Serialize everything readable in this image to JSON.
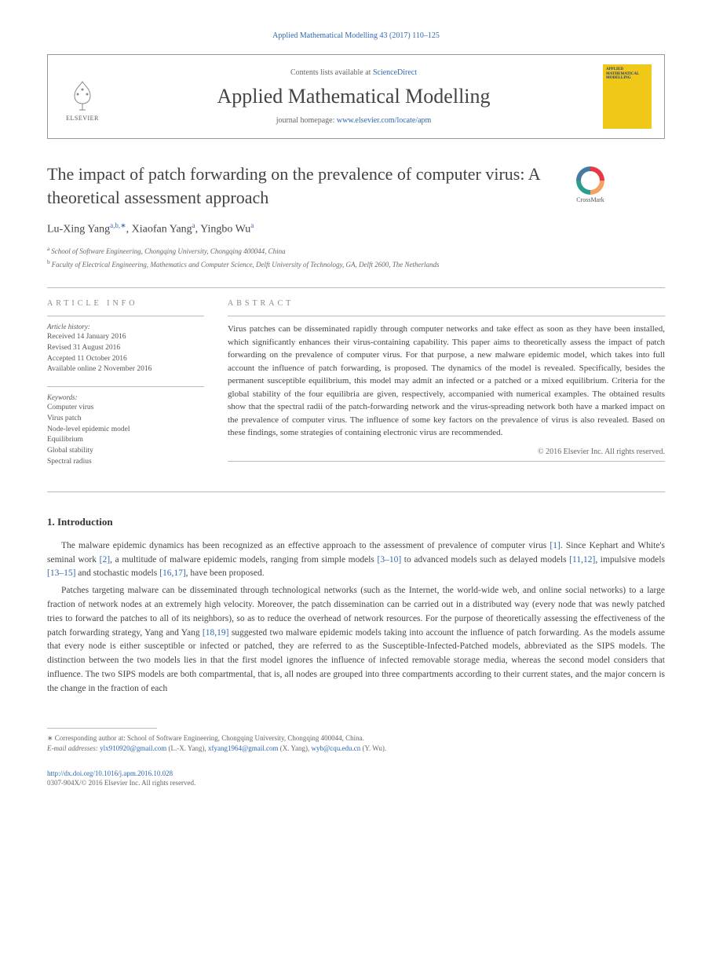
{
  "header": {
    "citation": "Applied Mathematical Modelling 43 (2017) 110–125",
    "contents_prefix": "Contents lists available at ",
    "contents_link": "ScienceDirect",
    "journal_name": "Applied Mathematical Modelling",
    "homepage_prefix": "journal homepage: ",
    "homepage_link": "www.elsevier.com/locate/apm",
    "elsevier_label": "ELSEVIER",
    "cover": {
      "bg_color": "#f0c818",
      "title": "APPLIED MATHEMATICAL MODELLING"
    }
  },
  "crossmark_label": "CrossMark",
  "title": "The impact of patch forwarding on the prevalence of computer virus: A theoretical assessment approach",
  "authors": [
    {
      "name": "Lu-Xing Yang",
      "affil": "a,b,",
      "corr": true
    },
    {
      "name": "Xiaofan Yang",
      "affil": "a",
      "corr": false
    },
    {
      "name": "Yingbo Wu",
      "affil": "a",
      "corr": false
    }
  ],
  "affiliations": [
    {
      "key": "a",
      "text": "School of Software Engineering, Chongqing University, Chongqing 400044, China"
    },
    {
      "key": "b",
      "text": "Faculty of Electrical Engineering, Mathematics and Computer Science, Delft University of Technology, GA, Delft 2600, The Netherlands"
    }
  ],
  "info_label": "ARTICLE INFO",
  "abstract_label": "ABSTRACT",
  "history": {
    "label": "Article history:",
    "items": [
      "Received 14 January 2016",
      "Revised 31 August 2016",
      "Accepted 11 October 2016",
      "Available online 2 November 2016"
    ]
  },
  "keywords": {
    "label": "Keywords:",
    "items": [
      "Computer virus",
      "Virus patch",
      "Node-level epidemic model",
      "Equilibrium",
      "Global stability",
      "Spectral radius"
    ]
  },
  "abstract_text": "Virus patches can be disseminated rapidly through computer networks and take effect as soon as they have been installed, which significantly enhances their virus-containing capability. This paper aims to theoretically assess the impact of patch forwarding on the prevalence of computer virus. For that purpose, a new malware epidemic model, which takes into full account the influence of patch forwarding, is proposed. The dynamics of the model is revealed. Specifically, besides the permanent susceptible equilibrium, this model may admit an infected or a patched or a mixed equilibrium. Criteria for the global stability of the four equilibria are given, respectively, accompanied with numerical examples. The obtained results show that the spectral radii of the patch-forwarding network and the virus-spreading network both have a marked impact on the prevalence of computer virus. The influence of some key factors on the prevalence of virus is also revealed. Based on these findings, some strategies of containing electronic virus are recommended.",
  "copyright": "© 2016 Elsevier Inc. All rights reserved.",
  "intro_heading": "1. Introduction",
  "paragraphs": {
    "p1_a": "The malware epidemic dynamics has been recognized as an effective approach to the assessment of prevalence of computer virus ",
    "p1_r1": "[1]",
    "p1_b": ". Since Kephart and White's seminal work ",
    "p1_r2": "[2]",
    "p1_c": ", a multitude of malware epidemic models, ranging from simple models ",
    "p1_r3": "[3–10]",
    "p1_d": " to advanced models such as delayed models ",
    "p1_r4": "[11,12]",
    "p1_e": ", impulsive models ",
    "p1_r5": "[13–15]",
    "p1_f": " and stochastic models ",
    "p1_r6": "[16,17]",
    "p1_g": ", have been proposed.",
    "p2_a": "Patches targeting malware can be disseminated through technological networks (such as the Internet, the world-wide web, and online social networks) to a large fraction of network nodes at an extremely high velocity. Moreover, the patch dissemination can be carried out in a distributed way (every node that was newly patched tries to forward the patches to all of its neighbors), so as to reduce the overhead of network resources. For the purpose of theoretically assessing the effectiveness of the patch forwarding strategy, Yang and Yang ",
    "p2_r1": "[18,19]",
    "p2_b": " suggested two malware epidemic models taking into account the influence of patch forwarding. As the models assume that every node is either susceptible or infected or patched, they are referred to as the Susceptible-Infected-Patched models, abbreviated as the SIPS models. The distinction between the two models lies in that the first model ignores the influence of infected removable storage media, whereas the second model considers that influence. The two SIPS models are both compartmental, that is, all nodes are grouped into three compartments according to their current states, and the major concern is the change in the fraction of each"
  },
  "footnote": {
    "corr_label": "Corresponding author at: School of Software Engineering, Chongqing University, Chongqing 400044, China.",
    "email_label": "E-mail addresses:",
    "emails": [
      {
        "addr": "ylx910920@gmail.com",
        "who": "(L.-X. Yang)"
      },
      {
        "addr": "xfyang1964@gmail.com",
        "who": "(X. Yang)"
      },
      {
        "addr": "wyb@cqu.edu.cn",
        "who": "(Y. Wu)"
      }
    ]
  },
  "footer": {
    "doi": "http://dx.doi.org/10.1016/j.apm.2016.10.028",
    "issn_line": "0307-904X/© 2016 Elsevier Inc. All rights reserved."
  },
  "colors": {
    "link": "#3068b0",
    "text": "#444",
    "muted": "#666",
    "border": "#bbb"
  }
}
